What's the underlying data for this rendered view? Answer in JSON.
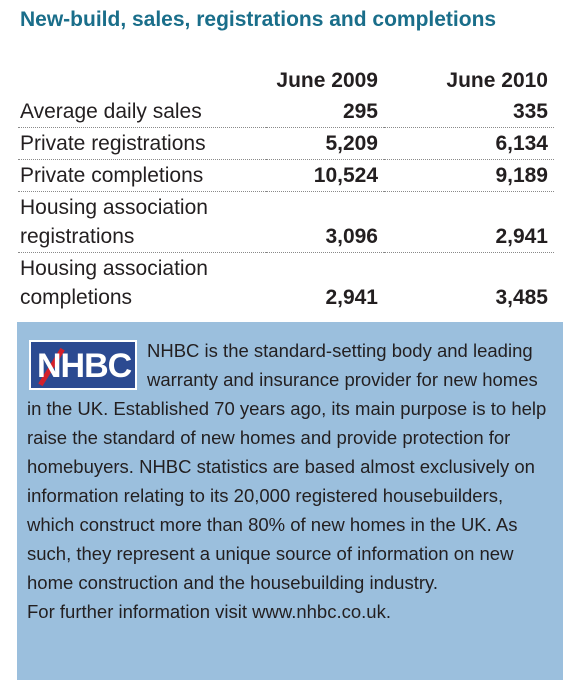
{
  "title": "New-build, sales, registrations and completions",
  "table": {
    "columns": [
      "June 2009",
      "June 2010"
    ],
    "rows": [
      {
        "label": "Average daily sales",
        "values": [
          "295",
          "335"
        ]
      },
      {
        "label": "Private registrations",
        "values": [
          "5,209",
          "6,134"
        ]
      },
      {
        "label": "Private completions",
        "values": [
          "10,524",
          "9,189"
        ]
      },
      {
        "label": "Housing association registrations",
        "values": [
          "3,096",
          "2,941"
        ]
      },
      {
        "label": "Housing association completions",
        "values": [
          "2,941",
          "3,485"
        ]
      }
    ]
  },
  "panel": {
    "logo_text": "NHBC",
    "body": "NHBC is the standard-setting body and leading warranty and insurance provider for new homes in the UK. Established 70 years ago, its main purpose is to help raise the standard of new homes and provide protection for homebuyers. NHBC statistics are based almost exclusively on information relating to its 20,000 registered housebuilders, which construct more than 80% of new homes in the UK. As such, they represent a unique source of information on new home construction and the housebuilding industry.",
    "footer": "For further information visit www.nhbc.co.uk.",
    "logo_color": "#2b4a91",
    "background_color": "#9bbfdd"
  }
}
